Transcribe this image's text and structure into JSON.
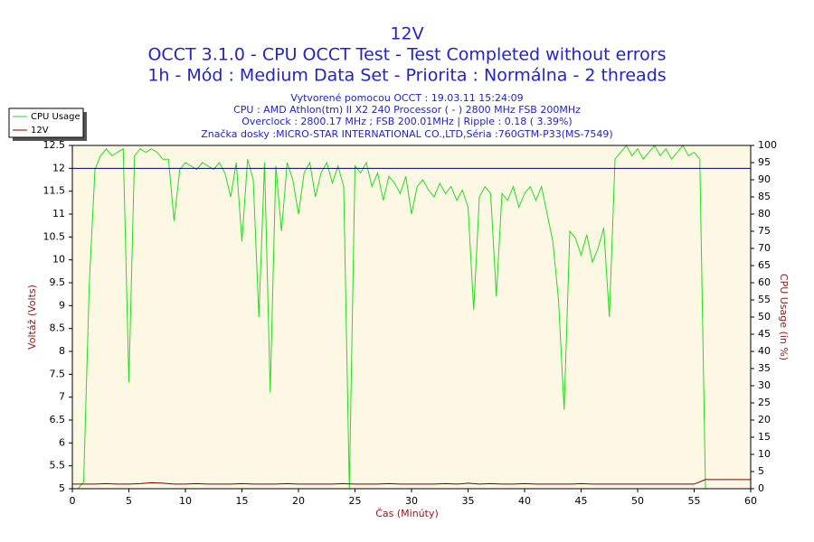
{
  "chart_data": {
    "type": "line",
    "title": "12V",
    "title_lines": [
      "OCCT 3.1.0 - CPU OCCT Test - Test Completed without errors",
      "1h - Mód : Medium Data Set - Priorita : Normálna - 2 threads"
    ],
    "subtitle_lines": [
      "Vytvorené pomocou OCCT : 19.03.11 15:24:09",
      "CPU : AMD Athlon(tm) II X2 240 Processor ( - ) 2800 MHz FSB 200MHz",
      "Overclock : 2800.17 MHz ; FSB 200.01MHz | Ripple : 0.18 ( 3.39%)",
      "Značka dosky :MICRO-STAR INTERNATIONAL CO.,LTD,Séria :760GTM-P33(MS-7549)"
    ],
    "xlabel": "Čas (Minúty)",
    "ylabel": "Voltáž (Volts)",
    "y2label": "CPU Usage (in %)",
    "xlim": [
      0,
      60
    ],
    "xticks": [
      0,
      5,
      10,
      15,
      20,
      25,
      30,
      35,
      40,
      45,
      50,
      55,
      60
    ],
    "ylim": [
      5,
      12.5
    ],
    "yticks": [
      5,
      5.5,
      6,
      6.5,
      7,
      7.5,
      8,
      8.5,
      9,
      9.5,
      10,
      10.5,
      11,
      11.5,
      12,
      12.5
    ],
    "y2lim": [
      0,
      100
    ],
    "y2ticks": [
      0,
      5,
      10,
      15,
      20,
      25,
      30,
      35,
      40,
      45,
      50,
      55,
      60,
      65,
      70,
      75,
      80,
      85,
      90,
      95,
      100
    ],
    "reference_line": {
      "value": 12,
      "color": "#000080"
    },
    "legend": "top-left",
    "series": [
      {
        "name": "CPU Usage",
        "color": "#22dd22",
        "axis": "y2",
        "x": [
          0,
          0.5,
          1,
          1.5,
          2,
          2.5,
          3,
          3.5,
          4,
          4.5,
          5,
          5.5,
          6,
          6.5,
          7,
          7.5,
          8,
          8.5,
          9,
          9.5,
          10,
          10.5,
          11,
          11.5,
          12,
          12.5,
          13,
          13.5,
          14,
          14.5,
          15,
          15.5,
          16,
          16.5,
          17,
          17.5,
          18,
          18.5,
          19,
          19.5,
          20,
          20.5,
          21,
          21.5,
          22,
          22.5,
          23,
          23.5,
          24,
          24.5,
          25,
          25.5,
          26,
          26.5,
          27,
          27.5,
          28,
          28.5,
          29,
          29.5,
          30,
          30.5,
          31,
          31.5,
          32,
          32.5,
          33,
          33.5,
          34,
          34.5,
          35,
          35.5,
          36,
          36.5,
          37,
          37.5,
          38,
          38.5,
          39,
          39.5,
          40,
          40.5,
          41,
          41.5,
          42,
          42.5,
          43,
          43.5,
          44,
          44.5,
          45,
          45.5,
          46,
          46.5,
          47,
          47.5,
          48,
          48.5,
          49,
          49.5,
          50,
          50.5,
          51,
          51.5,
          52,
          52.5,
          53,
          53.5,
          54,
          54.5,
          55,
          55.5,
          56,
          56.5,
          57,
          57.5,
          58,
          58.5,
          59,
          59.5,
          60
        ],
        "values": [
          0,
          0,
          2,
          60,
          93,
          97,
          99,
          97,
          98,
          99,
          31,
          97,
          99,
          98,
          99,
          98,
          96,
          96,
          78,
          93,
          95,
          94,
          93,
          95,
          94,
          93,
          95,
          92,
          85,
          95,
          72,
          96,
          90,
          50,
          95,
          28,
          94,
          75,
          95,
          90,
          80,
          92,
          95,
          85,
          92,
          95,
          89,
          94,
          88,
          0,
          94,
          92,
          95,
          88,
          92,
          84,
          91,
          89,
          86,
          91,
          80,
          88,
          90,
          87,
          85,
          89,
          86,
          88,
          84,
          87,
          82,
          52,
          85,
          88,
          86,
          56,
          86,
          84,
          88,
          82,
          86,
          88,
          84,
          88,
          80,
          72,
          55,
          23,
          75,
          73,
          68,
          74,
          66,
          70,
          76,
          50,
          96,
          98,
          100,
          97,
          99,
          96,
          98,
          100,
          97,
          99,
          96,
          98,
          100,
          97,
          98,
          96,
          0,
          0,
          0,
          0,
          0,
          0,
          0,
          0,
          0
        ]
      },
      {
        "name": "12V",
        "color": "#800000",
        "axis": "y",
        "x": [
          0,
          1,
          2,
          3,
          4,
          5,
          6,
          7,
          8,
          9,
          10,
          11,
          12,
          13,
          14,
          15,
          16,
          17,
          18,
          19,
          20,
          21,
          22,
          23,
          24,
          25,
          26,
          27,
          28,
          29,
          30,
          31,
          32,
          33,
          34,
          35,
          36,
          37,
          38,
          39,
          40,
          41,
          42,
          43,
          44,
          45,
          46,
          47,
          48,
          49,
          50,
          51,
          52,
          53,
          54,
          55,
          56,
          57,
          58,
          59,
          60
        ],
        "values": [
          5.1,
          5.1,
          5.1,
          5.11,
          5.1,
          5.1,
          5.11,
          5.13,
          5.12,
          5.1,
          5.1,
          5.11,
          5.1,
          5.1,
          5.1,
          5.11,
          5.1,
          5.1,
          5.1,
          5.11,
          5.1,
          5.1,
          5.1,
          5.1,
          5.11,
          5.1,
          5.1,
          5.1,
          5.11,
          5.1,
          5.1,
          5.1,
          5.1,
          5.11,
          5.1,
          5.12,
          5.1,
          5.11,
          5.1,
          5.1,
          5.11,
          5.1,
          5.1,
          5.1,
          5.1,
          5.11,
          5.1,
          5.1,
          5.1,
          5.1,
          5.1,
          5.1,
          5.1,
          5.1,
          5.1,
          5.1,
          5.2,
          5.2,
          5.2,
          5.2,
          5.2
        ]
      }
    ]
  }
}
